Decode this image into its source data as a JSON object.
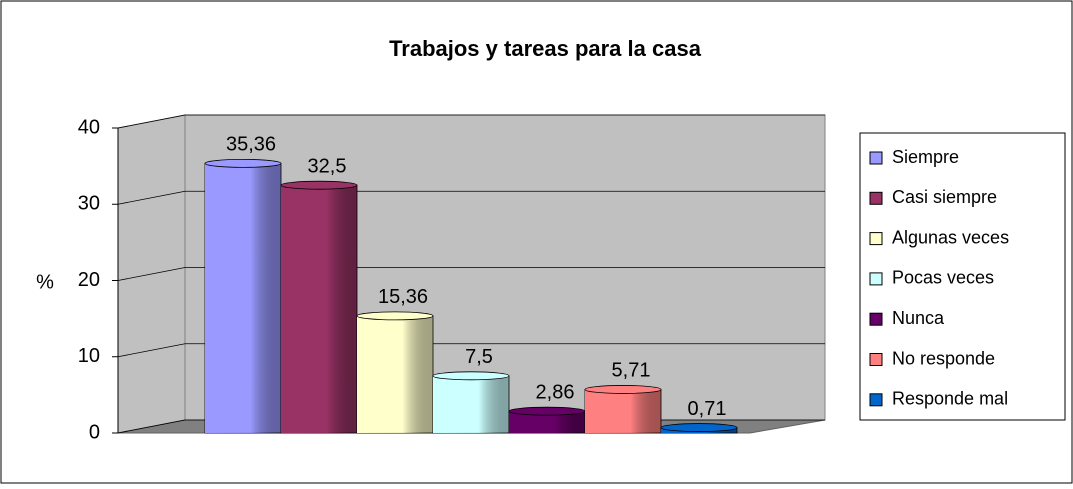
{
  "chart_data": {
    "type": "bar",
    "title": "Trabajos y tareas para la casa",
    "ylabel": "%",
    "categories": [
      "Siempre",
      "Casi siempre",
      "Algunas veces",
      "Pocas veces",
      "Nunca",
      "No responde",
      "Responde mal"
    ],
    "values": [
      35.36,
      32.5,
      15.36,
      7.5,
      2.86,
      5.71,
      0.71
    ],
    "value_labels": [
      "35,36",
      "32,5",
      "15,36",
      "7,5",
      "2,86",
      "5,71",
      "0,71"
    ],
    "colors": [
      "#9999ff",
      "#993366",
      "#ffffcc",
      "#ccffff",
      "#660066",
      "#ff8080",
      "#0066cc"
    ],
    "ylim": [
      0,
      40
    ],
    "yticks": [
      0,
      10,
      20,
      30,
      40
    ],
    "grid": true,
    "legend": "right"
  }
}
